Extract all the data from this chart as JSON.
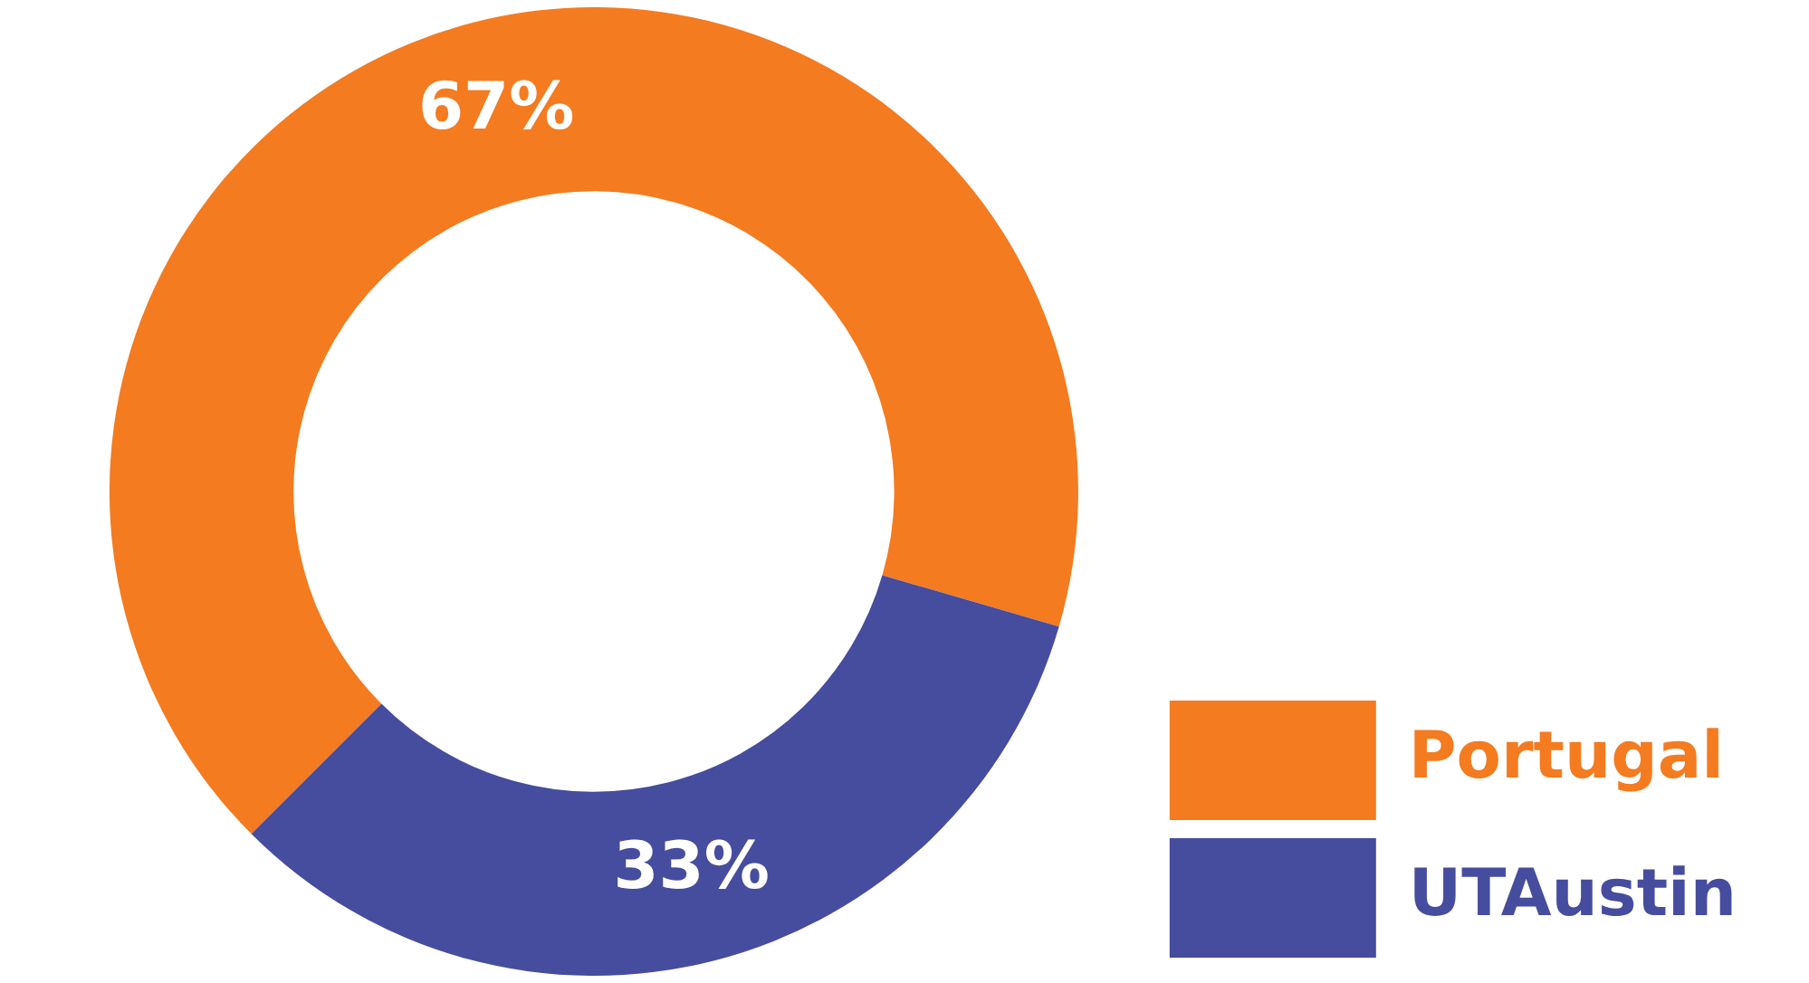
{
  "chart_data": {
    "type": "donut",
    "categories": [
      "Portugal",
      "UTAustin"
    ],
    "values": [
      67,
      33
    ],
    "colors": [
      "#f47b20",
      "#464c9e"
    ],
    "value_labels": [
      "67%",
      "33%"
    ],
    "legend": "bottom right"
  }
}
